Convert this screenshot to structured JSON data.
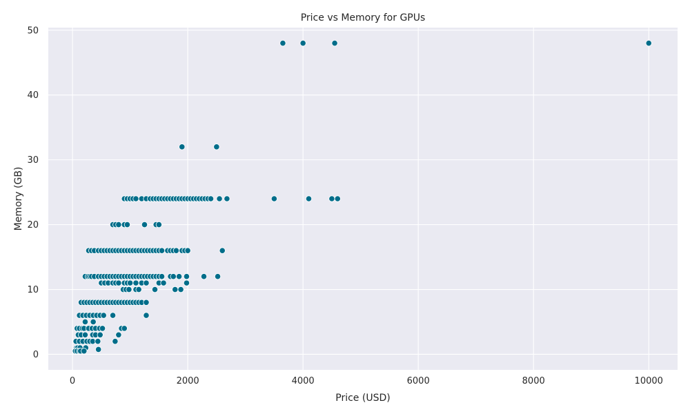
{
  "chart_data": {
    "type": "scatter",
    "title": "Price vs Memory for GPUs",
    "xlabel": "Price (USD)",
    "ylabel": "Memory (GB)",
    "xlim": [
      -420,
      10500
    ],
    "ylim": [
      -2.4,
      50.4
    ],
    "xticks": [
      0,
      2000,
      4000,
      6000,
      8000,
      10000
    ],
    "yticks": [
      0,
      10,
      20,
      30,
      40,
      50
    ],
    "grid": true,
    "colors": {
      "point": "#006d8a",
      "background": "#eaeaf2",
      "grid": "#ffffff"
    },
    "points": [
      [
        3650,
        48
      ],
      [
        4000,
        48
      ],
      [
        4550,
        48
      ],
      [
        10000,
        48
      ],
      [
        1900,
        32
      ],
      [
        2500,
        32
      ],
      [
        900,
        24
      ],
      [
        950,
        24
      ],
      [
        1000,
        24
      ],
      [
        1050,
        24
      ],
      [
        1100,
        24
      ],
      [
        1200,
        24
      ],
      [
        1280,
        24
      ],
      [
        1350,
        24
      ],
      [
        1400,
        24
      ],
      [
        1450,
        24
      ],
      [
        1500,
        24
      ],
      [
        1550,
        24
      ],
      [
        1600,
        24
      ],
      [
        1650,
        24
      ],
      [
        1700,
        24
      ],
      [
        1750,
        24
      ],
      [
        1800,
        24
      ],
      [
        1850,
        24
      ],
      [
        1900,
        24
      ],
      [
        1950,
        24
      ],
      [
        2000,
        24
      ],
      [
        2050,
        24
      ],
      [
        2100,
        24
      ],
      [
        2150,
        24
      ],
      [
        2200,
        24
      ],
      [
        2250,
        24
      ],
      [
        2300,
        24
      ],
      [
        2350,
        24
      ],
      [
        2400,
        24
      ],
      [
        2550,
        24
      ],
      [
        2680,
        24
      ],
      [
        3500,
        24
      ],
      [
        4100,
        24
      ],
      [
        4500,
        24
      ],
      [
        4600,
        24
      ],
      [
        700,
        20
      ],
      [
        750,
        20
      ],
      [
        800,
        20
      ],
      [
        900,
        20
      ],
      [
        950,
        20
      ],
      [
        1250,
        20
      ],
      [
        1450,
        20
      ],
      [
        1500,
        20
      ],
      [
        280,
        16
      ],
      [
        330,
        16
      ],
      [
        380,
        16
      ],
      [
        450,
        16
      ],
      [
        500,
        16
      ],
      [
        550,
        16
      ],
      [
        600,
        16
      ],
      [
        650,
        16
      ],
      [
        700,
        16
      ],
      [
        750,
        16
      ],
      [
        800,
        16
      ],
      [
        850,
        16
      ],
      [
        900,
        16
      ],
      [
        950,
        16
      ],
      [
        1000,
        16
      ],
      [
        1050,
        16
      ],
      [
        1100,
        16
      ],
      [
        1150,
        16
      ],
      [
        1200,
        16
      ],
      [
        1250,
        16
      ],
      [
        1300,
        16
      ],
      [
        1350,
        16
      ],
      [
        1400,
        16
      ],
      [
        1450,
        16
      ],
      [
        1500,
        16
      ],
      [
        1550,
        16
      ],
      [
        1650,
        16
      ],
      [
        1700,
        16
      ],
      [
        1750,
        16
      ],
      [
        1800,
        16
      ],
      [
        1900,
        16
      ],
      [
        1950,
        16
      ],
      [
        2000,
        16
      ],
      [
        2600,
        16
      ],
      [
        220,
        12
      ],
      [
        270,
        12
      ],
      [
        300,
        12
      ],
      [
        330,
        12
      ],
      [
        380,
        12
      ],
      [
        450,
        12
      ],
      [
        500,
        12
      ],
      [
        550,
        12
      ],
      [
        600,
        12
      ],
      [
        650,
        12
      ],
      [
        700,
        12
      ],
      [
        750,
        12
      ],
      [
        800,
        12
      ],
      [
        850,
        12
      ],
      [
        900,
        12
      ],
      [
        950,
        12
      ],
      [
        1000,
        12
      ],
      [
        1050,
        12
      ],
      [
        1100,
        12
      ],
      [
        1150,
        12
      ],
      [
        1200,
        12
      ],
      [
        1250,
        12
      ],
      [
        1300,
        12
      ],
      [
        1350,
        12
      ],
      [
        1400,
        12
      ],
      [
        1450,
        12
      ],
      [
        1500,
        12
      ],
      [
        1550,
        12
      ],
      [
        1700,
        12
      ],
      [
        1750,
        12
      ],
      [
        1850,
        12
      ],
      [
        1980,
        12
      ],
      [
        2280,
        12
      ],
      [
        2520,
        12
      ],
      [
        500,
        11
      ],
      [
        560,
        11
      ],
      [
        620,
        11
      ],
      [
        700,
        11
      ],
      [
        750,
        11
      ],
      [
        800,
        11
      ],
      [
        900,
        11
      ],
      [
        950,
        11
      ],
      [
        1000,
        11
      ],
      [
        1100,
        11
      ],
      [
        1200,
        11
      ],
      [
        1280,
        11
      ],
      [
        1500,
        11
      ],
      [
        1580,
        11
      ],
      [
        1980,
        11
      ],
      [
        880,
        10
      ],
      [
        930,
        10
      ],
      [
        980,
        10
      ],
      [
        1100,
        10
      ],
      [
        1150,
        10
      ],
      [
        1430,
        10
      ],
      [
        1780,
        10
      ],
      [
        1880,
        10
      ],
      [
        150,
        8
      ],
      [
        200,
        8
      ],
      [
        250,
        8
      ],
      [
        300,
        8
      ],
      [
        350,
        8
      ],
      [
        400,
        8
      ],
      [
        450,
        8
      ],
      [
        500,
        8
      ],
      [
        550,
        8
      ],
      [
        600,
        8
      ],
      [
        650,
        8
      ],
      [
        700,
        8
      ],
      [
        750,
        8
      ],
      [
        800,
        8
      ],
      [
        850,
        8
      ],
      [
        900,
        8
      ],
      [
        950,
        8
      ],
      [
        1000,
        8
      ],
      [
        1050,
        8
      ],
      [
        1100,
        8
      ],
      [
        1150,
        8
      ],
      [
        1200,
        8
      ],
      [
        1280,
        8
      ],
      [
        120,
        6
      ],
      [
        180,
        6
      ],
      [
        240,
        6
      ],
      [
        300,
        6
      ],
      [
        360,
        6
      ],
      [
        420,
        6
      ],
      [
        480,
        6
      ],
      [
        540,
        6
      ],
      [
        700,
        6
      ],
      [
        1280,
        6
      ],
      [
        220,
        5
      ],
      [
        360,
        5
      ],
      [
        80,
        4
      ],
      [
        120,
        4
      ],
      [
        170,
        4
      ],
      [
        200,
        4
      ],
      [
        280,
        4
      ],
      [
        340,
        4
      ],
      [
        400,
        4
      ],
      [
        470,
        4
      ],
      [
        520,
        4
      ],
      [
        850,
        4
      ],
      [
        900,
        4
      ],
      [
        100,
        3
      ],
      [
        150,
        3
      ],
      [
        220,
        3
      ],
      [
        350,
        3
      ],
      [
        400,
        3
      ],
      [
        480,
        3
      ],
      [
        800,
        3
      ],
      [
        60,
        2
      ],
      [
        120,
        2
      ],
      [
        180,
        2
      ],
      [
        250,
        2
      ],
      [
        300,
        2
      ],
      [
        350,
        2
      ],
      [
        440,
        2
      ],
      [
        740,
        2
      ],
      [
        70,
        1
      ],
      [
        90,
        1
      ],
      [
        130,
        1
      ],
      [
        230,
        1
      ],
      [
        50,
        0.5
      ],
      [
        80,
        0.5
      ],
      [
        120,
        0.5
      ],
      [
        140,
        0.5
      ],
      [
        200,
        0.5
      ],
      [
        450,
        0.75
      ]
    ]
  }
}
